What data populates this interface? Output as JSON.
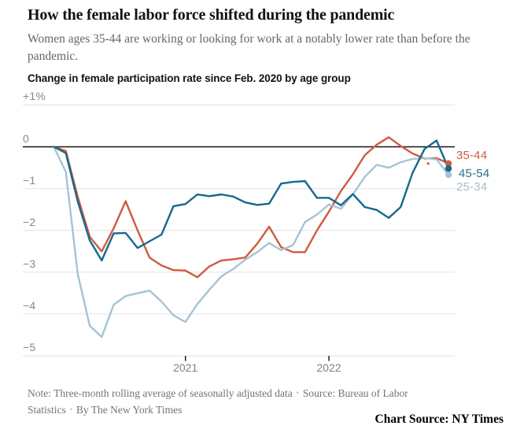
{
  "header": {
    "title": "How the female labor force shifted during the pandemic",
    "subtitle": "Women ages 35-44 are working or looking for work at a notably lower rate than before the pandemic.",
    "kicker": "Change in female participation rate since Feb. 2020 by age group"
  },
  "chart_data": {
    "type": "line",
    "title": "Change in female participation rate since Feb. 2020 by age group",
    "x_interval": "monthly",
    "x_start": "Feb 2020",
    "x_end": "Nov 2022",
    "ylim": [
      -5,
      1
    ],
    "grid": true,
    "legend_position": "right-of-line-ends",
    "y_axis": [
      {
        "label": "+1%",
        "value": 1
      },
      {
        "label": "0",
        "value": 0
      },
      {
        "label": "−1",
        "value": -1
      },
      {
        "label": "−2",
        "value": -2
      },
      {
        "label": "−3",
        "value": -3
      },
      {
        "label": "−4",
        "value": -4
      },
      {
        "label": "−5",
        "value": -5
      }
    ],
    "x_ticks": [
      {
        "label": "2021",
        "month_index": 11
      },
      {
        "label": "2022",
        "month_index": 23
      }
    ],
    "series": [
      {
        "name": "35-44",
        "color": "#cf5b40",
        "label_color": "#cf5b40",
        "values": [
          0,
          -0.1,
          -1.2,
          -2.15,
          -2.5,
          -1.95,
          -1.3,
          -2.0,
          -2.65,
          -2.84,
          -2.95,
          -2.96,
          -3.12,
          -2.86,
          -2.72,
          -2.69,
          -2.65,
          -2.32,
          -1.91,
          -2.4,
          -2.52,
          -2.52,
          -2.0,
          -1.55,
          -1.06,
          -0.66,
          -0.2,
          0.05,
          0.23,
          0.02,
          -0.16,
          -0.28,
          -0.27,
          -0.4
        ]
      },
      {
        "name": "25-34",
        "color": "#a5c4d5",
        "label_color": "#a7bdca",
        "values": [
          0,
          -0.6,
          -3.05,
          -4.28,
          -4.55,
          -3.78,
          -3.57,
          -3.5,
          -3.44,
          -3.7,
          -4.03,
          -4.19,
          -3.76,
          -3.42,
          -3.1,
          -2.92,
          -2.7,
          -2.52,
          -2.3,
          -2.47,
          -2.35,
          -1.8,
          -1.62,
          -1.38,
          -1.48,
          -1.14,
          -0.72,
          -0.43,
          -0.5,
          -0.37,
          -0.29,
          -0.27,
          -0.3,
          -0.67
        ]
      },
      {
        "name": "45-54",
        "color": "#16698c",
        "label_color": "#2a6e8d",
        "values": [
          0,
          -0.15,
          -1.31,
          -2.24,
          -2.72,
          -2.07,
          -2.06,
          -2.42,
          -2.26,
          -2.1,
          -1.42,
          -1.37,
          -1.14,
          -1.18,
          -1.14,
          -1.19,
          -1.33,
          -1.39,
          -1.36,
          -0.88,
          -0.84,
          -0.82,
          -1.22,
          -1.22,
          -1.4,
          -1.13,
          -1.44,
          -1.51,
          -1.7,
          -1.44,
          -0.62,
          -0.05,
          0.15,
          -0.52
        ]
      }
    ],
    "legend_order": [
      "35-44",
      "45-54",
      "25-34"
    ],
    "stray_point": {
      "series": "35-44",
      "x_month": 31.3,
      "value": -0.4
    }
  },
  "footer": {
    "bullet": "•",
    "note_text": "Note: Three-month rolling average of seasonally adjusted data",
    "source_line1": "Source: Bureau of Labor",
    "source_line2": "Statistics",
    "byline": "By The New York Times",
    "chart_source": "Chart Source:  NY Times"
  }
}
